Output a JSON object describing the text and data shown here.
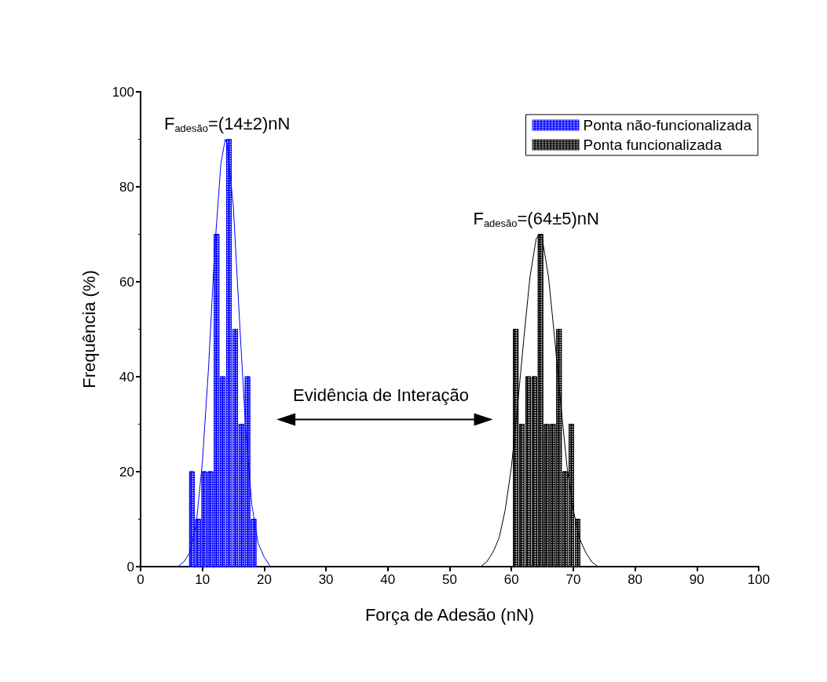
{
  "chart_data": {
    "type": "histogram",
    "xlabel": "Força de Adesão (nN)",
    "ylabel": "Frequência (%)",
    "xlim": [
      0,
      100
    ],
    "xticks": [
      0,
      10,
      20,
      30,
      40,
      50,
      60,
      70,
      80,
      90,
      100
    ],
    "ylim": [
      0,
      100
    ],
    "yticks": [
      0,
      20,
      40,
      60,
      80,
      100
    ],
    "grid": false,
    "legend": "top right",
    "series": [
      {
        "name": "Ponta não-funcionalizada",
        "color": "#0000ff",
        "bins": [
          7.8,
          8.8,
          9.8,
          10.8,
          11.8,
          12.8,
          13.8,
          14.8,
          15.8,
          16.8,
          17.8,
          18.8
        ],
        "values": [
          20,
          10,
          20,
          20,
          70,
          40,
          90,
          50,
          30,
          40,
          10
        ]
      },
      {
        "name": "Ponta funcionalizada",
        "color": "#000000",
        "bins": [
          60.2,
          61.2,
          62.2,
          63.2,
          64.2,
          65.2,
          66.2,
          67.2,
          68.2,
          69.2,
          70.2,
          71.2
        ],
        "values": [
          50,
          30,
          40,
          40,
          70,
          30,
          30,
          50,
          20,
          30,
          10
        ]
      },
      {
        "type": "line",
        "color": "#0000ff",
        "x": [
          6,
          7,
          8,
          9,
          10,
          11,
          12,
          13,
          13.7,
          14,
          15,
          16,
          17,
          18,
          19,
          20,
          21
        ],
        "values": [
          0,
          1,
          3,
          9,
          22,
          42,
          67,
          85,
          90,
          89,
          76,
          52,
          29,
          13,
          5,
          2,
          0
        ]
      },
      {
        "type": "line",
        "color": "#000000",
        "x": [
          55,
          56,
          57,
          58,
          59,
          60,
          61,
          62,
          63,
          64,
          64.5,
          65,
          66,
          67,
          68,
          69,
          70,
          71,
          72,
          73,
          74
        ],
        "values": [
          0,
          1,
          3,
          6,
          12,
          21,
          34,
          48,
          61,
          69,
          70,
          69,
          61,
          48,
          34,
          21,
          12,
          6,
          3,
          1,
          0
        ]
      }
    ],
    "annotations": [
      {
        "text": "F$_{adesão}$=(14±2)nN",
        "x": 14,
        "y": 90
      },
      {
        "text": "F$_{adesão}$=(64±5)nN",
        "x": 64,
        "y": 70
      },
      "Evidência de Interação"
    ]
  }
}
